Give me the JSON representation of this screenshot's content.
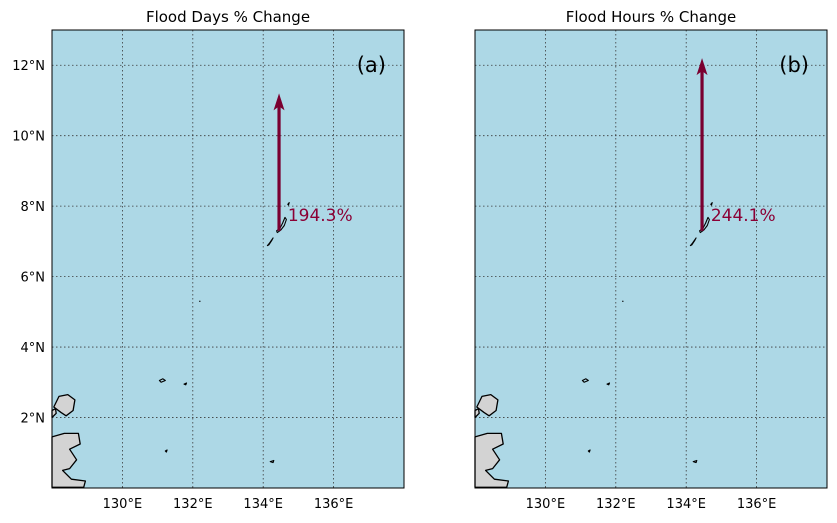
{
  "colors": {
    "ocean": "#add8e6",
    "land": "#d3d3d3",
    "arrow": "#7a0030",
    "label": "#8b0035",
    "grid": "#3a3a3a"
  },
  "axes": {
    "lon_range": [
      128.0,
      138.0
    ],
    "lat_range": [
      0.0,
      13.0
    ],
    "lon_ticks": [
      130,
      132,
      134,
      136
    ],
    "lat_ticks": [
      2,
      4,
      6,
      8,
      10,
      12
    ],
    "lon_tick_labels": [
      "130°E",
      "132°E",
      "134°E",
      "136°E"
    ],
    "lat_tick_labels": [
      "2°N",
      "4°N",
      "6°N",
      "8°N",
      "10°N",
      "12°N"
    ]
  },
  "panels": [
    {
      "title": "Flood Days % Change",
      "letter": "(a)",
      "arrow": {
        "lon": 134.45,
        "lat_start": 7.3,
        "lat_end": 11.2
      },
      "value_label": "194.3%",
      "value_position": {
        "lon": 134.7,
        "lat": 7.75
      }
    },
    {
      "title": "Flood Hours % Change",
      "letter": "(b)",
      "arrow": {
        "lon": 134.45,
        "lat_start": 7.3,
        "lat_end": 12.2
      },
      "value_label": "244.1%",
      "value_position": {
        "lon": 134.7,
        "lat": 7.75
      }
    }
  ]
}
